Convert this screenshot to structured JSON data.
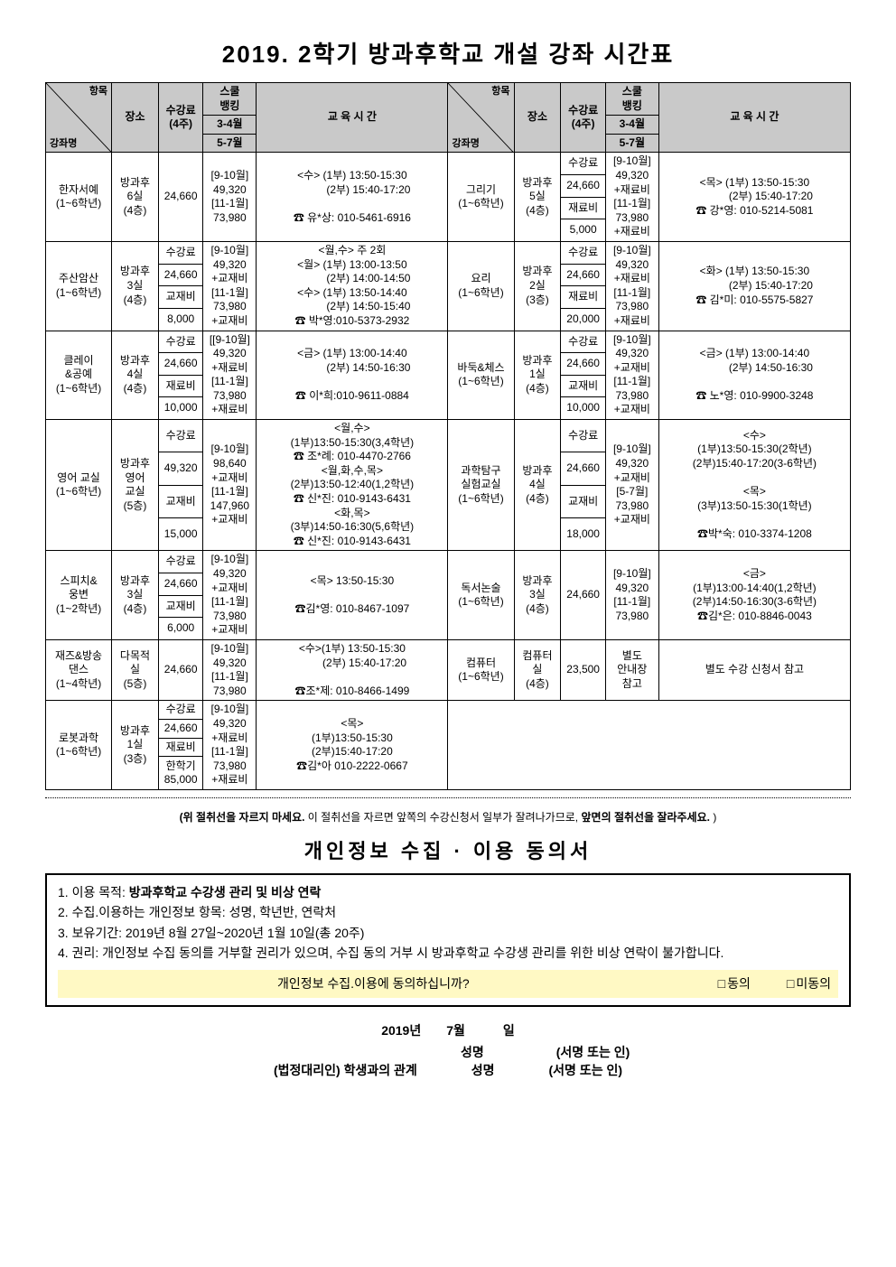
{
  "title": "2019. 2학기 방과후학교 개설 강좌 시간표",
  "header": {
    "diag_a": "항목",
    "diag_b": "강좌명",
    "place": "장소",
    "fee": "수강료\n(4주)",
    "bank": "스쿨\n뱅킹",
    "bank_a": "3-4월",
    "bank_b": "5-7월",
    "time": "교 육  시 간"
  },
  "rows": [
    {
      "left": {
        "name": "한자서예\n(1~6학년)",
        "place": "방과후\n6실\n(4층)",
        "fee_cells": [
          "24,660"
        ],
        "bank": "[9-10월]\n49,320\n[11-1월]\n73,980",
        "time": "<수> (1부) 13:50-15:30\n　　　(2부) 15:40-17:20\n\n☎ 유*상: 010-5461-6916"
      },
      "right": {
        "name": "그리기\n(1~6학년)",
        "place": "방과후\n5실\n(4층)",
        "fee_cells": [
          "수강료",
          "24,660",
          "재료비",
          "5,000"
        ],
        "bank": "[9-10월]\n49,320\n+재료비\n[11-1월]\n73,980\n+재료비",
        "time": "<목> (1부) 13:50-15:30\n　　　(2부) 15:40-17:20\n☎ 강*영: 010-5214-5081"
      }
    },
    {
      "left": {
        "name": "주산암산\n(1~6학년)",
        "place": "방과후\n3실\n(4층)",
        "fee_cells": [
          "수강료",
          "24,660",
          "교재비",
          "8,000"
        ],
        "bank": "[9-10월]\n49,320\n+교재비\n[11-1월]\n73,980\n+교재비",
        "time": "<월,수>  주 2회\n<월> (1부) 13:00-13:50\n　　　(2부) 14:00-14:50\n<수> (1부) 13:50-14:40\n　　　(2부) 14:50-15:40\n☎ 박*영:010-5373-2932"
      },
      "right": {
        "name": "요리\n(1~6학년)",
        "place": "방과후\n2실\n(3층)",
        "fee_cells": [
          "수강료",
          "24,660",
          "재료비",
          "20,000"
        ],
        "bank": "[9-10월]\n49,320\n+재료비\n[11-1월]\n73,980\n+재료비",
        "time": "<화> (1부) 13:50-15:30\n　　　(2부) 15:40-17:20\n☎ 김*미: 010-5575-5827"
      }
    },
    {
      "left": {
        "name": "클레이\n&공예\n(1~6학년)",
        "place": "방과후\n4실\n(4층)",
        "fee_cells": [
          "수강료",
          "24,660",
          "재료비",
          "10,000"
        ],
        "bank": "[[9-10월]\n49,320\n+재료비\n[11-1월]\n73,980\n+재료비",
        "time": "<금> (1부) 13:00-14:40\n　　　(2부) 14:50-16:30\n\n☎ 이*희:010-9611-0884"
      },
      "right": {
        "name": "바둑&체스\n(1~6학년)",
        "place": "방과후\n1실\n(4층)",
        "fee_cells": [
          "수강료",
          "24,660",
          "교재비",
          "10,000"
        ],
        "bank": "[9-10월]\n49,320\n+교재비\n[11-1월]\n73,980\n+교재비",
        "time": "<금> (1부) 13:00-14:40\n　　　(2부) 14:50-16:30\n\n☎ 노*영: 010-9900-3248"
      }
    },
    {
      "left": {
        "name": "영어 교실\n(1~6학년)",
        "place": "방과후\n영어\n교실\n(5층)",
        "fee_cells": [
          "수강료",
          "49,320",
          "교재비",
          "15,000"
        ],
        "bank": "[9-10월]\n98,640\n+교재비\n[11-1월]\n147,960\n+교재비",
        "time": "<월,수>\n(1부)13:50-15:30(3,4학년)\n☎ 조*례: 010-4470-2766\n<월,화,수,목>\n(2부)13:50-12:40(1,2학년)\n☎ 신*진: 010-9143-6431\n<화,목>\n(3부)14:50-16:30(5,6학년)\n☎ 신*진: 010-9143-6431"
      },
      "right": {
        "name": "과학탐구\n실험교실\n(1~6학년)",
        "place": "방과후\n4실\n(4층)",
        "fee_cells": [
          "수강료",
          "24,660",
          "교재비",
          "18,000"
        ],
        "bank": "[9-10월]\n49,320\n+교재비\n[5-7월]\n73,980\n+교재비",
        "time": "<수>\n(1부)13:50-15:30(2학년)\n(2부)15:40-17:20(3-6학년)\n\n<목>\n(3부)13:50-15:30(1학년)\n\n☎박*숙: 010-3374-1208"
      }
    },
    {
      "left": {
        "name": "스피치&\n웅변\n(1~2학년)",
        "place": "방과후\n3실\n(4층)",
        "fee_cells": [
          "수강료",
          "24,660",
          "교재비",
          "6,000"
        ],
        "bank": "[9-10월]\n49,320\n+교재비\n[11-1월]\n73,980\n+교재비",
        "time": "<목>  13:50-15:30\n\n☎김*영: 010-8467-1097"
      },
      "right": {
        "name": "독서논술\n(1~6학년)",
        "place": "방과후\n3실\n(4층)",
        "fee_cells": [
          "24,660"
        ],
        "bank": "[9-10월]\n49,320\n[11-1월]\n73,980",
        "time": "<금>\n(1부)13:00-14:40(1,2학년)\n(2부)14:50-16:30(3-6학년)\n☎김*은: 010-8846-0043"
      }
    },
    {
      "left": {
        "name": "재즈&방송\n댄스\n(1~4학년)",
        "place": "다목적\n실\n(5층)",
        "fee_cells": [
          "24,660"
        ],
        "bank": "[9-10월]\n49,320\n[11-1월]\n73,980",
        "time": "<수>(1부) 13:50-15:30\n　　 (2부) 15:40-17:20\n\n☎조*제: 010-8466-1499"
      },
      "right": {
        "name": "컴퓨터\n(1~6학년)",
        "place": "컴퓨터\n실\n(4층)",
        "fee_cells": [
          "23,500"
        ],
        "bank": "별도\n안내장\n참고",
        "time": "별도 수강 신청서 참고"
      }
    },
    {
      "left": {
        "name": "로봇과학\n(1~6학년)",
        "place": "방과후\n1실\n(3층)",
        "fee_cells": [
          "수강료",
          "24,660",
          "재료비",
          "한학기\n85,000"
        ],
        "bank": "[9-10월]\n49,320\n+재료비\n[11-1월]\n73,980\n+재료비",
        "time": "<목>\n(1부)13:50-15:30\n(2부)15:40-17:20\n☎김*아 010-2222-0667"
      },
      "right": null
    }
  ],
  "cutnote": {
    "prefix": "(위 절취선을 자르지 마세요.",
    "mid": " 이 절취선을 자르면 앞쪽의 수강신청서 일부가 잘려나가므로, ",
    "suffix": "앞면의 절취선을 잘라주세요.",
    "end": " )"
  },
  "consent": {
    "title": "개인정보 수집 · 이용 동의서",
    "lines": [
      {
        "n": "1. 이용 목적: ",
        "b": "방과후학교 수강생 관리 및 비상 연락"
      },
      {
        "n": "2. 수집.이용하는 개인정보 항목: 성명, 학년반, 연락처",
        "b": ""
      },
      {
        "n": "3. 보유기간: 2019년 8월 27일~2020년 1월 10일(총 20주)",
        "b": ""
      },
      {
        "n": "4. 권리: 개인정보 수집 동의를 거부할 권리가 있으며, 수집 동의 거부 시 방과후학교 수강생 관리를 위한 비상 연락이 불가합니다.",
        "b": ""
      }
    ],
    "agree_q": "개인정보 수집.이용에 동의하십니까?",
    "agree_yes": "동의",
    "agree_no": "미동의"
  },
  "sig": {
    "date": "2019년　　7월　　　일",
    "name_label": "성명",
    "sign_label": "(서명 또는 인)",
    "rel_label": "(법정대리인) 학생과의 관계"
  }
}
